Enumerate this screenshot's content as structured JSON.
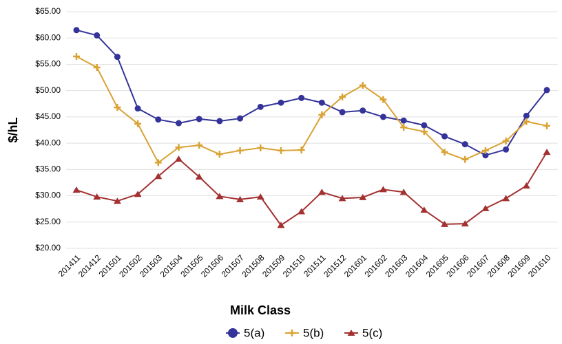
{
  "chart_data": {
    "type": "line",
    "y_label": "$/hL",
    "legend_title": "Milk Class",
    "categories": [
      "201411",
      "201412",
      "201501",
      "201502",
      "201503",
      "201504",
      "201505",
      "201506",
      "201507",
      "201508",
      "201509",
      "201510",
      "201511",
      "201512",
      "201601",
      "201602",
      "201603",
      "201604",
      "201605",
      "201606",
      "201607",
      "201608",
      "201609",
      "201610"
    ],
    "series": [
      {
        "name": "5(a)",
        "color": "#333399",
        "marker": "circle",
        "values": [
          61.5,
          60.5,
          56.4,
          46.6,
          44.5,
          43.8,
          44.6,
          44.2,
          44.7,
          46.9,
          47.7,
          48.6,
          47.7,
          45.9,
          46.2,
          45.0,
          44.3,
          43.4,
          41.3,
          39.8,
          37.7,
          38.8,
          45.2,
          50.1
        ]
      },
      {
        "name": "5(b)",
        "color": "#d9a234",
        "marker": "plus",
        "values": [
          56.5,
          54.4,
          46.8,
          43.7,
          36.3,
          39.2,
          39.6,
          37.9,
          38.6,
          39.1,
          38.6,
          38.7,
          45.4,
          48.8,
          51.0,
          48.3,
          43.0,
          42.2,
          38.3,
          36.9,
          38.6,
          40.4,
          44.1,
          43.3
        ]
      },
      {
        "name": "5(c)",
        "color": "#a33131",
        "marker": "triangle",
        "values": [
          31.1,
          29.8,
          29.0,
          30.3,
          33.7,
          37.0,
          33.6,
          29.9,
          29.3,
          29.8,
          24.4,
          27.0,
          30.7,
          29.5,
          29.7,
          31.2,
          30.7,
          27.3,
          24.6,
          24.7,
          27.6,
          29.5,
          31.9,
          38.3
        ]
      }
    ],
    "ylim": [
      20,
      65
    ],
    "yticks": [
      {
        "value": 20,
        "label": "$20.00"
      },
      {
        "value": 25,
        "label": "$25.00"
      },
      {
        "value": 30,
        "label": "$30.00"
      },
      {
        "value": 35,
        "label": "$35.00"
      },
      {
        "value": 40,
        "label": "$40.00"
      },
      {
        "value": 45,
        "label": "$45.00"
      },
      {
        "value": 50,
        "label": "$50.00"
      },
      {
        "value": 55,
        "label": "$55.00"
      },
      {
        "value": 60,
        "label": "$60.00"
      },
      {
        "value": 65,
        "label": "$65.00"
      }
    ],
    "grid": true
  }
}
